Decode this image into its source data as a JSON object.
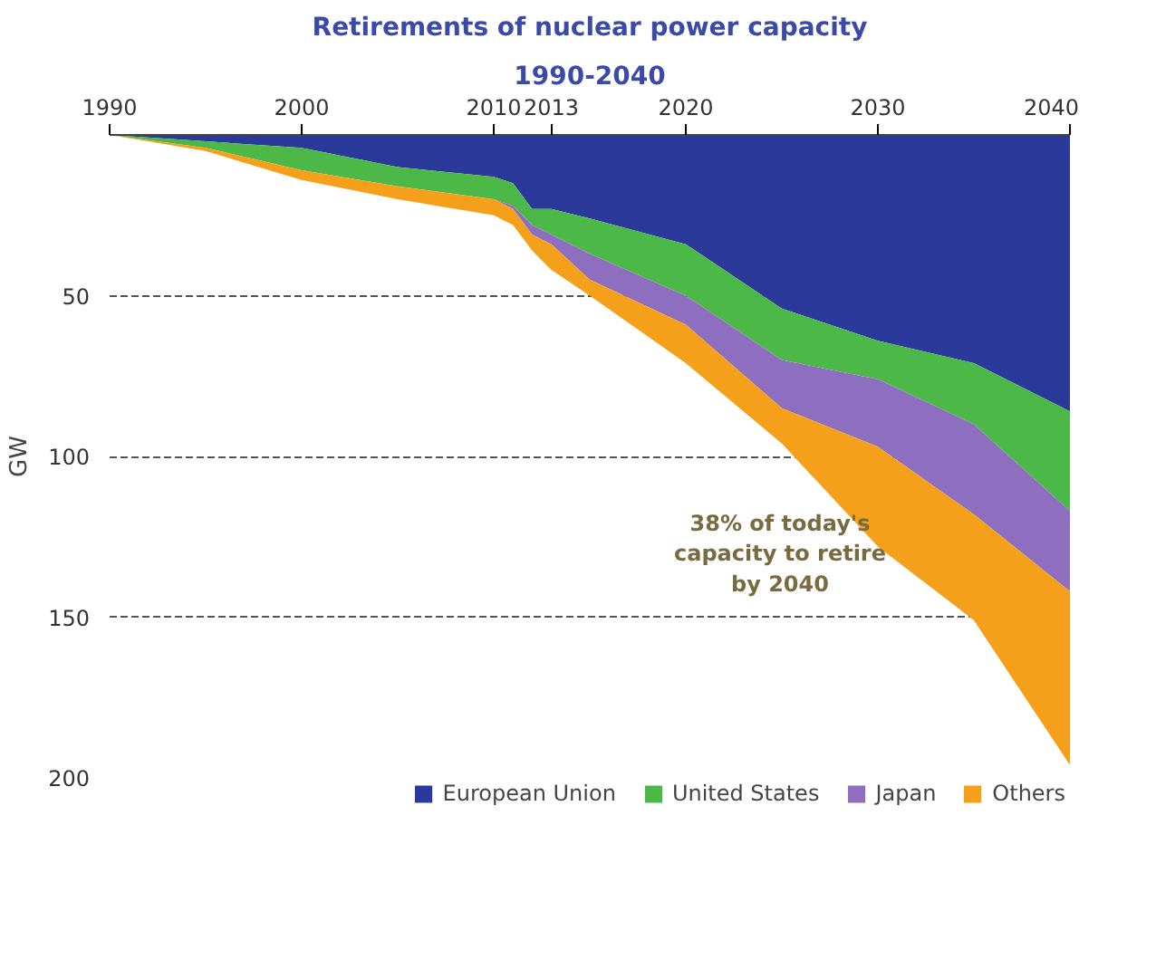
{
  "chart_data": {
    "type": "area",
    "title": "Retirements of nuclear power capacity",
    "subtitle": "1990-2040",
    "ylabel": "GW",
    "x": [
      1990,
      1995,
      2000,
      2005,
      2010,
      2011,
      2012,
      2013,
      2015,
      2020,
      2025,
      2030,
      2035,
      2040
    ],
    "stacked": true,
    "series": [
      {
        "name": "European Union",
        "color": "#2b3a9a",
        "values": [
          0,
          2,
          4,
          10,
          13,
          15,
          23,
          23,
          26,
          34,
          54,
          64,
          71,
          86
        ]
      },
      {
        "name": "United States",
        "color": "#4cb848",
        "values": [
          0,
          2,
          7,
          6,
          7,
          7,
          5,
          8,
          11,
          16,
          16,
          12,
          19,
          31
        ]
      },
      {
        "name": "Japan",
        "color": "#8e6fbf",
        "values": [
          0,
          0,
          0,
          0,
          0,
          1,
          3,
          3,
          8,
          9,
          15,
          21,
          28,
          25
        ]
      },
      {
        "name": "Others",
        "color": "#f5a01a",
        "values": [
          0,
          1,
          3,
          4,
          5,
          5,
          5,
          8,
          5,
          12,
          11,
          31,
          33,
          54
        ]
      }
    ],
    "xlim": [
      1990,
      2040
    ],
    "xticks": [
      1990,
      2000,
      2010,
      2013,
      2020,
      2030,
      2040
    ],
    "ylim": [
      200,
      0
    ],
    "yticks": [
      50,
      100,
      150,
      200
    ],
    "grid": "y",
    "legend": "bottom",
    "annotations": [
      "38% of today's\ncapacity to retire\nby 2040"
    ]
  }
}
